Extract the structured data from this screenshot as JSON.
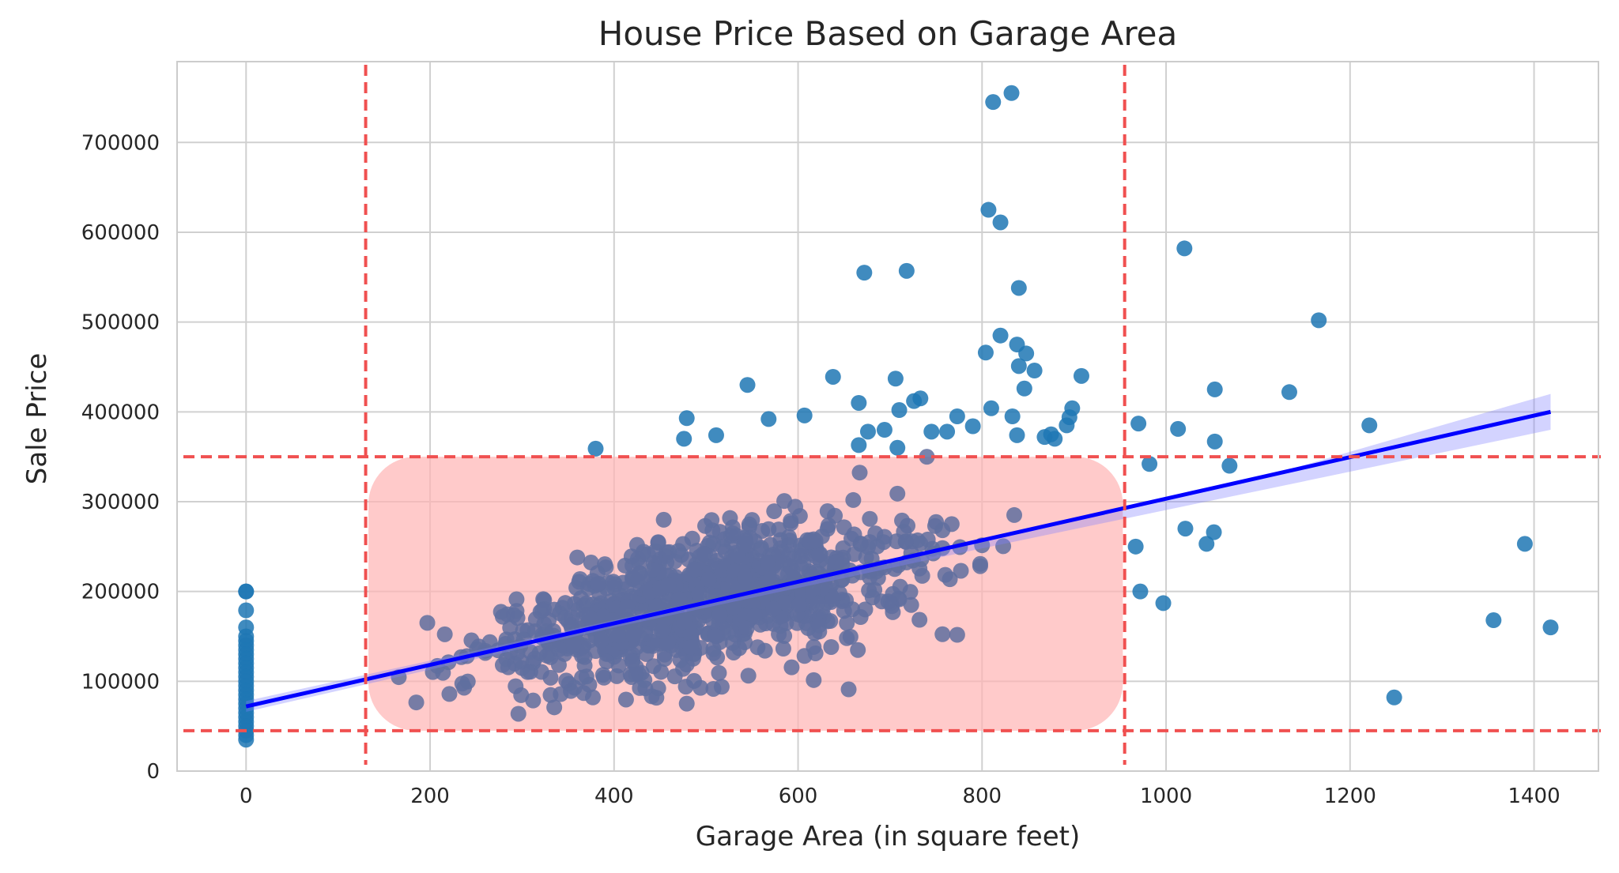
{
  "chart_data": {
    "type": "scatter",
    "title": "House Price Based on Garage Area",
    "xlabel": "Garage Area (in square feet)",
    "ylabel": "Sale Price",
    "xlim": [
      -75,
      1470
    ],
    "ylim": [
      0,
      790000
    ],
    "x_ticks": [
      0,
      200,
      400,
      600,
      800,
      1000,
      1200,
      1400
    ],
    "y_ticks": [
      0,
      100000,
      200000,
      300000,
      400000,
      500000,
      600000,
      700000
    ],
    "x_tick_labels": [
      "0",
      "200",
      "400",
      "600",
      "800",
      "1000",
      "1200",
      "1400"
    ],
    "y_tick_labels": [
      "0",
      "100000",
      "200000",
      "300000",
      "400000",
      "500000",
      "600000",
      "700000"
    ],
    "grid": true,
    "colors": {
      "points": "#1f77b4",
      "points_in_box": "#5f6f9f",
      "regression_line": "#0000ff",
      "confidence_band": "#8080ff",
      "threshold_lines": "#f05050",
      "highlight_box": "#ffb3b3",
      "grid": "#d0d0d0"
    },
    "regression": {
      "x": [
        0,
        1418
      ],
      "y": [
        72000,
        400000
      ]
    },
    "confidence_band": {
      "x": [
        0,
        400,
        800,
        1100,
        1418
      ],
      "lower": [
        66000,
        160000,
        248000,
        312000,
        380000
      ],
      "upper": [
        78000,
        168000,
        256000,
        326000,
        420000
      ]
    },
    "thresholds": {
      "x_low": 130,
      "x_high": 955,
      "y_low": 45000,
      "y_high": 350000
    },
    "highlight_region": {
      "x": [
        133,
        953
      ],
      "y": [
        45000,
        350000
      ]
    },
    "series": [
      {
        "values": [
          [
            0,
            200000
          ],
          [
            0,
            200000
          ],
          [
            0,
            179000
          ],
          [
            0,
            160000
          ],
          [
            0,
            150000
          ],
          [
            0,
            145000
          ],
          [
            0,
            140000
          ],
          [
            0,
            135000
          ],
          [
            0,
            130000
          ],
          [
            0,
            125000
          ],
          [
            0,
            120000
          ],
          [
            0,
            115000
          ],
          [
            0,
            110000
          ],
          [
            0,
            105000
          ],
          [
            0,
            100000
          ],
          [
            0,
            95000
          ],
          [
            0,
            90000
          ],
          [
            0,
            85000
          ],
          [
            0,
            80000
          ],
          [
            0,
            75000
          ],
          [
            0,
            70000
          ],
          [
            0,
            65000
          ],
          [
            0,
            60000
          ],
          [
            0,
            55000
          ],
          [
            0,
            50000
          ],
          [
            0,
            45000
          ],
          [
            0,
            40000
          ],
          [
            0,
            35000
          ],
          [
            812,
            745000
          ],
          [
            832,
            755000
          ],
          [
            807,
            625000
          ],
          [
            820,
            611000
          ],
          [
            1020,
            582000
          ],
          [
            672,
            555000
          ],
          [
            718,
            557000
          ],
          [
            840,
            538000
          ],
          [
            1166,
            502000
          ],
          [
            820,
            485000
          ],
          [
            838,
            475000
          ],
          [
            848,
            465000
          ],
          [
            804,
            466000
          ],
          [
            840,
            451000
          ],
          [
            908,
            440000
          ],
          [
            857,
            446000
          ],
          [
            638,
            439000
          ],
          [
            706,
            437000
          ],
          [
            545,
            430000
          ],
          [
            846,
            426000
          ],
          [
            1053,
            425000
          ],
          [
            1134,
            422000
          ],
          [
            733,
            415000
          ],
          [
            726,
            412000
          ],
          [
            666,
            410000
          ],
          [
            810,
            404000
          ],
          [
            898,
            404000
          ],
          [
            710,
            402000
          ],
          [
            833,
            395000
          ],
          [
            895,
            394000
          ],
          [
            773,
            395000
          ],
          [
            607,
            396000
          ],
          [
            479,
            393000
          ],
          [
            568,
            392000
          ],
          [
            1221,
            385000
          ],
          [
            970,
            387000
          ],
          [
            892,
            385000
          ],
          [
            790,
            384000
          ],
          [
            1013,
            381000
          ],
          [
            694,
            380000
          ],
          [
            676,
            378000
          ],
          [
            745,
            378000
          ],
          [
            762,
            378000
          ],
          [
            511,
            374000
          ],
          [
            875,
            375000
          ],
          [
            838,
            374000
          ],
          [
            879,
            370000
          ],
          [
            868,
            372000
          ],
          [
            476,
            370000
          ],
          [
            1053,
            367000
          ],
          [
            666,
            363000
          ],
          [
            708,
            360000
          ],
          [
            380,
            359000
          ],
          [
            740,
            350000
          ],
          [
            982,
            342000
          ],
          [
            1069,
            340000
          ],
          [
            1021,
            270000
          ],
          [
            1052,
            266000
          ],
          [
            1044,
            253000
          ],
          [
            967,
            250000
          ],
          [
            972,
            200000
          ],
          [
            997,
            187000
          ],
          [
            1390,
            253000
          ],
          [
            1356,
            168000
          ],
          [
            1418,
            160000
          ],
          [
            1248,
            82000
          ]
        ]
      }
    ]
  }
}
